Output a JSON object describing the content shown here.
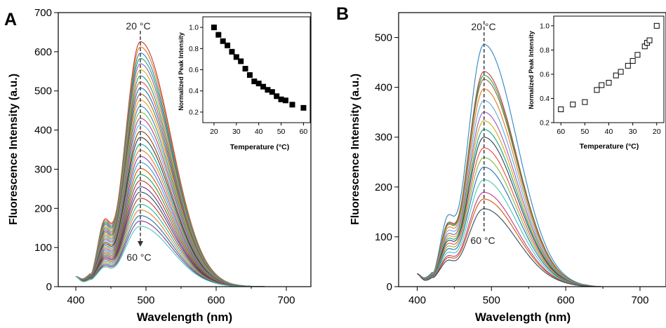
{
  "chart_data": [
    {
      "panel_label": "A",
      "type": "line",
      "xlabel": "Wavelength (nm)",
      "ylabel": "Fluorescence Intensity (a.u.)",
      "xlim": [
        375,
        735
      ],
      "ylim": [
        0,
        700
      ],
      "x_ticks": [
        "400",
        "500",
        "600",
        "700"
      ],
      "y_ticks": [
        "0",
        "100",
        "200",
        "300",
        "400",
        "500",
        "600",
        "700"
      ],
      "peak_wavelength": 492,
      "curve_end_wavelength": 680,
      "annotation_top": "20 °C",
      "annotation_bottom": "60 °C",
      "series": [
        {
          "name": "",
          "peak": 636,
          "color": "#c0392b"
        },
        {
          "name": "",
          "peak": 622,
          "color": "#e2791f"
        },
        {
          "name": "",
          "peak": 606,
          "color": "#2c7fb8"
        },
        {
          "name": "",
          "peak": 592,
          "color": "#27a35a"
        },
        {
          "name": "",
          "peak": 578,
          "color": "#9b59b6"
        },
        {
          "name": "",
          "peak": 562,
          "color": "#d4ac0d"
        },
        {
          "name": "",
          "peak": 546,
          "color": "#16a085"
        },
        {
          "name": "",
          "peak": 530,
          "color": "#e74c3c"
        },
        {
          "name": "",
          "peak": 514,
          "color": "#1f6fbf"
        },
        {
          "name": "",
          "peak": 498,
          "color": "#8e6b3a"
        },
        {
          "name": "",
          "peak": 482,
          "color": "#f39c12"
        },
        {
          "name": "",
          "peak": 466,
          "color": "#2e86c1"
        },
        {
          "name": "",
          "peak": 450,
          "color": "#7dbb3a"
        },
        {
          "name": "",
          "peak": 434,
          "color": "#c0398b"
        },
        {
          "name": "",
          "peak": 418,
          "color": "#5dade2"
        },
        {
          "name": "",
          "peak": 400,
          "color": "#a04000"
        },
        {
          "name": "",
          "peak": 384,
          "color": "#2c3e50"
        },
        {
          "name": "",
          "peak": 366,
          "color": "#17a589"
        },
        {
          "name": "",
          "peak": 350,
          "color": "#e67e22"
        },
        {
          "name": "",
          "peak": 334,
          "color": "#8e44ad"
        },
        {
          "name": "",
          "peak": 318,
          "color": "#3498db"
        },
        {
          "name": "",
          "peak": 302,
          "color": "#d35400"
        },
        {
          "name": "",
          "peak": 286,
          "color": "#229954"
        },
        {
          "name": "",
          "peak": 270,
          "color": "#b03a2e"
        },
        {
          "name": "",
          "peak": 254,
          "color": "#6c3483"
        },
        {
          "name": "",
          "peak": 240,
          "color": "#34495e"
        },
        {
          "name": "",
          "peak": 224,
          "color": "#c0392b"
        },
        {
          "name": "",
          "peak": 208,
          "color": "#1abc9c"
        },
        {
          "name": "",
          "peak": 193,
          "color": "#e67e22"
        },
        {
          "name": "",
          "peak": 178,
          "color": "#2471a3"
        },
        {
          "name": "",
          "peak": 164,
          "color": "#7d3c98"
        },
        {
          "name": "",
          "peak": 150,
          "color": "#48c9b0"
        }
      ],
      "inset": {
        "type": "scatter",
        "xlabel": "Temperature (°C)",
        "ylabel": "Normalized Peak Intensity",
        "xlim": [
          15,
          63
        ],
        "ylim": [
          0.1,
          1.1
        ],
        "x_ticks": [
          "20",
          "30",
          "40",
          "50",
          "60"
        ],
        "y_ticks": [
          "0.2",
          "0.4",
          "0.6",
          "0.8",
          "1.0"
        ],
        "marker": "filled-square",
        "x": [
          20,
          22,
          24,
          26,
          28,
          30,
          32,
          34,
          36,
          38,
          40,
          42,
          44,
          46,
          48,
          50,
          52,
          55,
          60
        ],
        "y": [
          1.0,
          0.93,
          0.87,
          0.83,
          0.77,
          0.72,
          0.68,
          0.61,
          0.55,
          0.49,
          0.47,
          0.44,
          0.41,
          0.39,
          0.35,
          0.32,
          0.31,
          0.27,
          0.24
        ]
      }
    },
    {
      "panel_label": "B",
      "type": "line",
      "xlabel": "Wavelength (nm)",
      "ylabel": "Fluorescence Intensity (a.u.)",
      "xlim": [
        375,
        735
      ],
      "ylim": [
        0,
        550
      ],
      "x_ticks": [
        "400",
        "500",
        "600",
        "700"
      ],
      "y_ticks": [
        "0",
        "100",
        "200",
        "300",
        "400",
        "500"
      ],
      "peak_wavelength": 490,
      "curve_end_wavelength": 650,
      "annotation_top": "20 °C",
      "annotation_bottom": "60 °C",
      "series": [
        {
          "name": "",
          "peak": 492,
          "color": "#2e86c1"
        },
        {
          "name": "",
          "peak": 436,
          "color": "#c0392b"
        },
        {
          "name": "",
          "peak": 428,
          "color": "#27a35a"
        },
        {
          "name": "",
          "peak": 420,
          "color": "#8e6b3a"
        },
        {
          "name": "",
          "peak": 400,
          "color": "#e2791f"
        },
        {
          "name": "",
          "peak": 376,
          "color": "#5dade2"
        },
        {
          "name": "",
          "peak": 352,
          "color": "#9b59b6"
        },
        {
          "name": "",
          "peak": 334,
          "color": "#d4ac0d"
        },
        {
          "name": "",
          "peak": 316,
          "color": "#16a085"
        },
        {
          "name": "",
          "peak": 300,
          "color": "#2c3e50"
        },
        {
          "name": "",
          "peak": 278,
          "color": "#e74c3c"
        },
        {
          "name": "",
          "peak": 258,
          "color": "#7dbb3a"
        },
        {
          "name": "",
          "peak": 238,
          "color": "#1f6fbf"
        },
        {
          "name": "",
          "peak": 212,
          "color": "#48c9b0"
        },
        {
          "name": "",
          "peak": 186,
          "color": "#c0398b"
        },
        {
          "name": "",
          "peak": 172,
          "color": "#d35400"
        },
        {
          "name": "",
          "peak": 152,
          "color": "#34495e"
        }
      ],
      "inset": {
        "type": "scatter",
        "xlabel": "Temperature (°C)",
        "ylabel": "Normalized Peak Intensity",
        "xlim": [
          63,
          17
        ],
        "ylim": [
          0.2,
          1.08
        ],
        "x_ticks": [
          "60",
          "50",
          "40",
          "30",
          "20"
        ],
        "y_ticks": [
          "0.2",
          "0.4",
          "0.6",
          "0.8",
          "1.0"
        ],
        "marker": "open-square",
        "x": [
          60,
          55,
          50,
          45,
          43,
          40,
          37,
          35,
          32,
          30,
          28,
          25,
          24,
          23,
          20
        ],
        "y": [
          0.31,
          0.35,
          0.37,
          0.47,
          0.51,
          0.53,
          0.59,
          0.62,
          0.67,
          0.71,
          0.76,
          0.83,
          0.86,
          0.88,
          1.0
        ]
      }
    }
  ]
}
